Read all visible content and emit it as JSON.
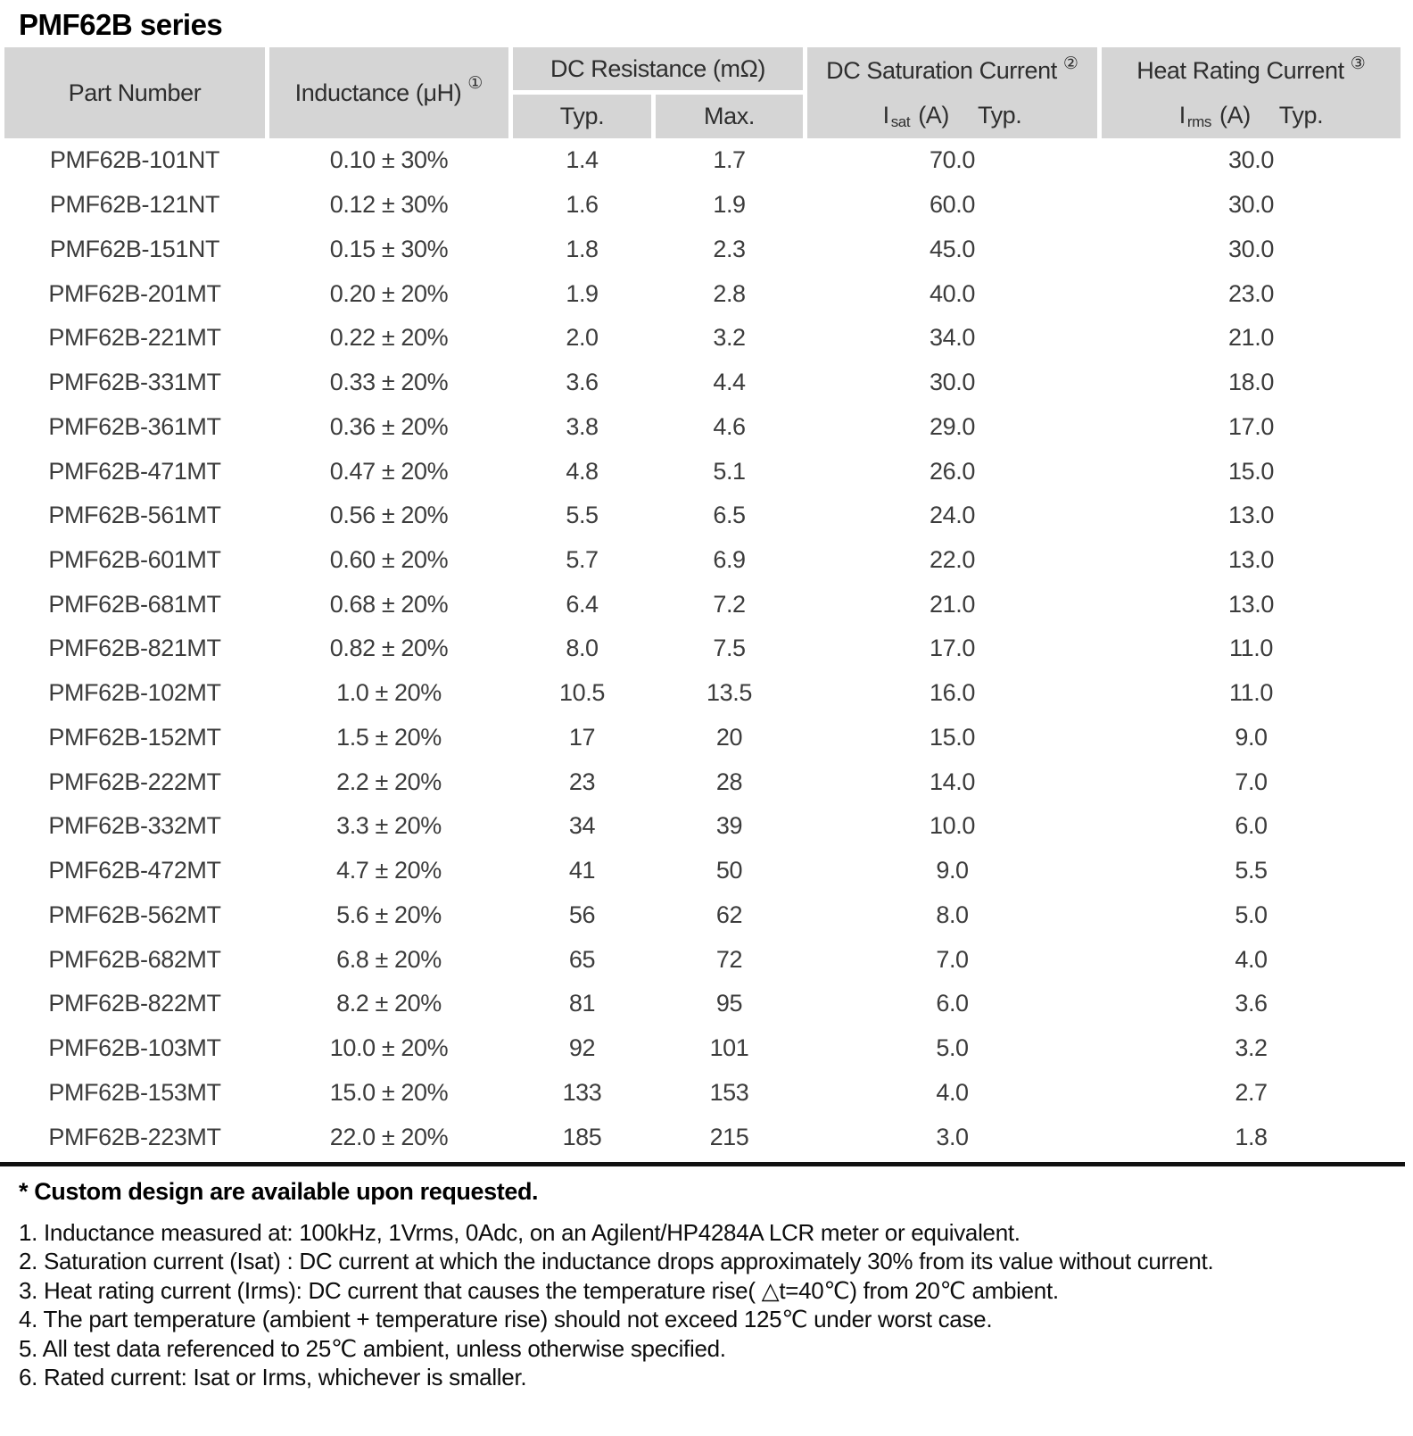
{
  "title": "PMF62B series",
  "colors": {
    "header_bg": "#d5d5d5",
    "rule": "#111111"
  },
  "table": {
    "headers": {
      "part_number": "Part Number",
      "inductance": "Inductance (μH)",
      "inductance_note": "①",
      "dc_resistance": "DC Resistance (mΩ)",
      "typ": "Typ.",
      "max": "Max.",
      "saturation": "DC Saturation Current",
      "saturation_note": "②",
      "isat": {
        "symbol": "I",
        "sub": "sat",
        "unit": "(A)",
        "qual": "Typ."
      },
      "heat": "Heat Rating Current",
      "heat_note": "③",
      "irms": {
        "symbol": "I",
        "sub": "rms",
        "unit": "(A)",
        "qual": "Typ."
      }
    },
    "rows": [
      [
        "PMF62B-101NT",
        "0.10 ± 30%",
        "1.4",
        "1.7",
        "70.0",
        "30.0"
      ],
      [
        "PMF62B-121NT",
        "0.12 ± 30%",
        "1.6",
        "1.9",
        "60.0",
        "30.0"
      ],
      [
        "PMF62B-151NT",
        "0.15 ± 30%",
        "1.8",
        "2.3",
        "45.0",
        "30.0"
      ],
      [
        "PMF62B-201MT",
        "0.20 ± 20%",
        "1.9",
        "2.8",
        "40.0",
        "23.0"
      ],
      [
        "PMF62B-221MT",
        "0.22 ± 20%",
        "2.0",
        "3.2",
        "34.0",
        "21.0"
      ],
      [
        "PMF62B-331MT",
        "0.33 ± 20%",
        "3.6",
        "4.4",
        "30.0",
        "18.0"
      ],
      [
        "PMF62B-361MT",
        "0.36 ± 20%",
        "3.8",
        "4.6",
        "29.0",
        "17.0"
      ],
      [
        "PMF62B-471MT",
        "0.47 ± 20%",
        "4.8",
        "5.1",
        "26.0",
        "15.0"
      ],
      [
        "PMF62B-561MT",
        "0.56 ± 20%",
        "5.5",
        "6.5",
        "24.0",
        "13.0"
      ],
      [
        "PMF62B-601MT",
        "0.60 ± 20%",
        "5.7",
        "6.9",
        "22.0",
        "13.0"
      ],
      [
        "PMF62B-681MT",
        "0.68 ± 20%",
        "6.4",
        "7.2",
        "21.0",
        "13.0"
      ],
      [
        "PMF62B-821MT",
        "0.82 ± 20%",
        "8.0",
        "7.5",
        "17.0",
        "11.0"
      ],
      [
        "PMF62B-102MT",
        "1.0 ± 20%",
        "10.5",
        "13.5",
        "16.0",
        "11.0"
      ],
      [
        "PMF62B-152MT",
        "1.5 ± 20%",
        "17",
        "20",
        "15.0",
        "9.0"
      ],
      [
        "PMF62B-222MT",
        "2.2 ± 20%",
        "23",
        "28",
        "14.0",
        "7.0"
      ],
      [
        "PMF62B-332MT",
        "3.3 ± 20%",
        "34",
        "39",
        "10.0",
        "6.0"
      ],
      [
        "PMF62B-472MT",
        "4.7 ± 20%",
        "41",
        "50",
        "9.0",
        "5.5"
      ],
      [
        "PMF62B-562MT",
        "5.6 ± 20%",
        "56",
        "62",
        "8.0",
        "5.0"
      ],
      [
        "PMF62B-682MT",
        "6.8 ± 20%",
        "65",
        "72",
        "7.0",
        "4.0"
      ],
      [
        "PMF62B-822MT",
        "8.2 ± 20%",
        "81",
        "95",
        "6.0",
        "3.6"
      ],
      [
        "PMF62B-103MT",
        "10.0 ± 20%",
        "92",
        "101",
        "5.0",
        "3.2"
      ],
      [
        "PMF62B-153MT",
        "15.0 ± 20%",
        "133",
        "153",
        "4.0",
        "2.7"
      ],
      [
        "PMF62B-223MT",
        "22.0 ± 20%",
        "185",
        "215",
        "3.0",
        "1.8"
      ]
    ]
  },
  "footnotes": {
    "custom": "* Custom design are available upon requested.",
    "items": [
      "1. Inductance measured at: 100kHz, 1Vrms, 0Adc, on an Agilent/HP4284A LCR meter or equivalent.",
      "2. Saturation current (Isat) : DC current at which the inductance drops approximately 30% from its value without current.",
      "3. Heat rating current (Irms): DC current that causes the temperature rise( △t=40℃) from 20℃ ambient.",
      "4. The part temperature (ambient + temperature rise) should not exceed 125℃ under worst case.",
      "5. All test data referenced to 25℃ ambient, unless otherwise specified.",
      "6. Rated current: Isat or Irms, whichever is smaller."
    ]
  }
}
